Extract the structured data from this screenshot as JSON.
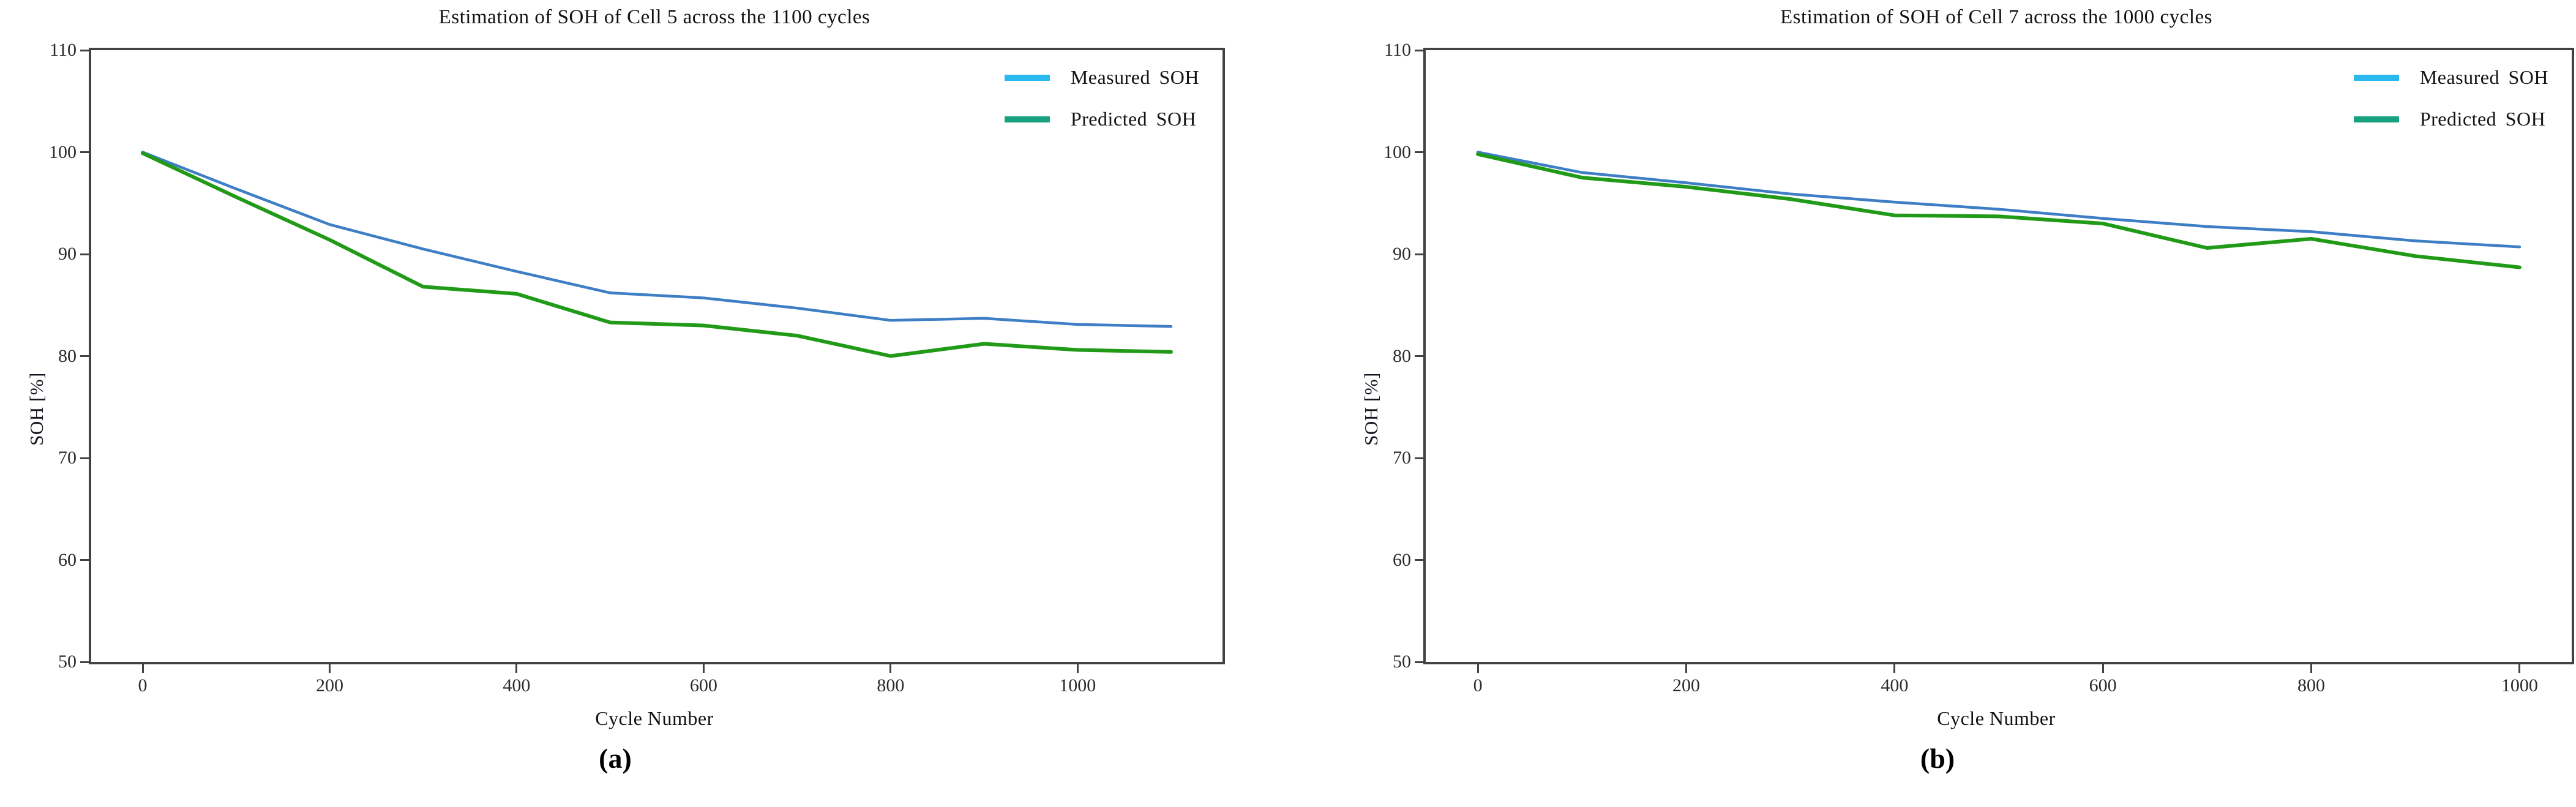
{
  "chart_data": [
    {
      "type": "line",
      "title": "Estimation of SOH of Cell 5 across the 1100 cycles",
      "xlabel": "Cycle Number",
      "ylabel": "SOH [%]",
      "caption": "(a)",
      "xlim": [
        -55,
        1155
      ],
      "ylim": [
        50,
        110
      ],
      "xticks": [
        0,
        200,
        400,
        600,
        800,
        1000
      ],
      "yticks": [
        110,
        100,
        90,
        80,
        70,
        60,
        50
      ],
      "grid": false,
      "legend_position": "upper right",
      "x": [
        0,
        100,
        200,
        300,
        400,
        500,
        600,
        700,
        800,
        900,
        1000,
        1100
      ],
      "series": [
        {
          "name": "Measured SOH",
          "line_color": "#3d7ec5",
          "legend_color": "#29b9ef",
          "line_width": 4.5,
          "values": [
            100,
            96.4,
            92.9,
            90.5,
            88.3,
            86.2,
            85.7,
            84.7,
            83.5,
            83.7,
            83.1,
            82.9
          ]
        },
        {
          "name": "Predicted SOH",
          "line_color": "#219a18",
          "legend_color": "#18a17f",
          "line_width": 6,
          "values": [
            99.9,
            95.6,
            91.4,
            86.8,
            86.1,
            83.3,
            83.0,
            82.0,
            80.0,
            81.2,
            80.6,
            80.4
          ]
        }
      ]
    },
    {
      "type": "line",
      "title": "Estimation of SOH of Cell 7 across the 1000 cycles",
      "xlabel": "Cycle Number",
      "ylabel": "SOH [%]",
      "caption": "(b)",
      "xlim": [
        -50,
        1050
      ],
      "ylim": [
        50,
        110
      ],
      "xticks": [
        0,
        200,
        400,
        600,
        800,
        1000
      ],
      "yticks": [
        110,
        100,
        90,
        80,
        70,
        60,
        50
      ],
      "grid": false,
      "legend_position": "upper right",
      "x": [
        0,
        100,
        200,
        300,
        400,
        500,
        600,
        700,
        800,
        900,
        1000
      ],
      "series": [
        {
          "name": "Measured SOH",
          "line_color": "#3d7ec5",
          "legend_color": "#29b9ef",
          "line_width": 4.5,
          "values": [
            100,
            98.0,
            97.0,
            95.9,
            95.1,
            94.4,
            93.5,
            92.7,
            92.2,
            91.3,
            90.7
          ]
        },
        {
          "name": "Predicted SOH",
          "line_color": "#219a18",
          "legend_color": "#18a17f",
          "line_width": 6,
          "values": [
            99.8,
            97.5,
            96.6,
            95.4,
            93.8,
            93.7,
            93.0,
            90.6,
            91.5,
            89.8,
            88.7
          ]
        }
      ]
    }
  ]
}
